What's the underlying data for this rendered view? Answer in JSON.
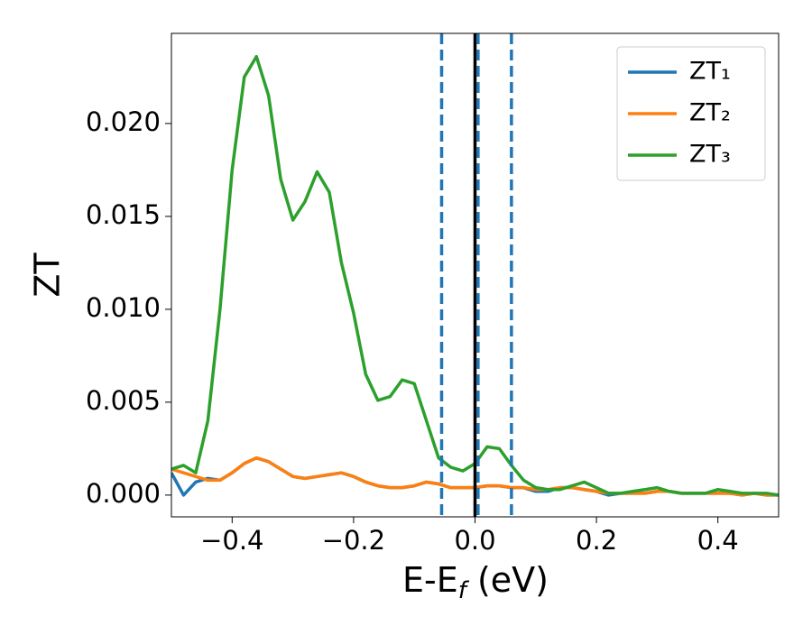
{
  "chart_data": {
    "type": "line",
    "ylabel": "ZT",
    "xlabel": [
      "E-E",
      "f",
      " (eV)"
    ],
    "xlim": [
      -0.5,
      0.5
    ],
    "ylim": [
      -0.00117,
      0.02485
    ],
    "xticks": [
      {
        "value": -0.4,
        "label": "−0.4"
      },
      {
        "value": -0.2,
        "label": "−0.2"
      },
      {
        "value": 0,
        "label": "0.0"
      },
      0.2,
      0.4
    ],
    "yticks": [
      {
        "value": 0,
        "label": "0.000"
      },
      {
        "value": 0.005,
        "label": "0.005"
      },
      {
        "value": 0.01,
        "label": "0.010"
      },
      {
        "value": 0.015,
        "label": "0.015"
      },
      {
        "value": 0.02,
        "label": "0.020"
      }
    ],
    "legend": "upper right",
    "grid": false,
    "vlines": [
      {
        "x": 0,
        "color": "#000000",
        "style": "solid"
      },
      {
        "x": -0.055,
        "color": "#1f77b4",
        "style": "dashed"
      },
      {
        "x": 0.005,
        "color": "#1f77b4",
        "style": "dashed"
      },
      {
        "x": 0.06,
        "color": "#1f77b4",
        "style": "dashed"
      }
    ],
    "x": [
      -0.5,
      -0.48,
      -0.46,
      -0.44,
      -0.42,
      -0.4,
      -0.38,
      -0.36,
      -0.34,
      -0.32,
      -0.3,
      -0.28,
      -0.26,
      -0.24,
      -0.22,
      -0.2,
      -0.18,
      -0.16,
      -0.14,
      -0.12,
      -0.1,
      -0.08,
      -0.06,
      -0.04,
      -0.02,
      0,
      0.02,
      0.04,
      0.06,
      0.08,
      0.1,
      0.12,
      0.14,
      0.16,
      0.18,
      0.2,
      0.22,
      0.24,
      0.26,
      0.28,
      0.3,
      0.32,
      0.34,
      0.36,
      0.38,
      0.4,
      0.42,
      0.44,
      0.46,
      0.48,
      0.5
    ],
    "series": [
      {
        "name": "ZT₁",
        "color": "#1f77b4",
        "values": [
          0.0012,
          0.0,
          0.0007,
          0.0009,
          0.0008,
          0.0012,
          0.0017,
          0.002,
          0.0018,
          0.0014,
          0.001,
          0.0009,
          0.001,
          0.0011,
          0.0012,
          0.001,
          0.0007,
          0.0005,
          0.0004,
          0.0004,
          0.0005,
          0.0007,
          0.0006,
          0.0004,
          0.0004,
          0.0004,
          0.0005,
          0.0005,
          0.0004,
          0.0004,
          0.0002,
          0.0002,
          0.0004,
          0.0004,
          0.0003,
          0.0002,
          0.0,
          0.0001,
          0.0001,
          0.0001,
          0.0002,
          0.0002,
          0.0001,
          0.0001,
          0.0001,
          0.0001,
          0.0001,
          0.0,
          0.0001,
          0.0,
          0.0
        ]
      },
      {
        "name": "ZT₂",
        "color": "#ff7f0e",
        "values": [
          0.0014,
          0.0012,
          0.001,
          0.0008,
          0.0008,
          0.0012,
          0.0017,
          0.002,
          0.0018,
          0.0014,
          0.001,
          0.0009,
          0.001,
          0.0011,
          0.0012,
          0.001,
          0.0007,
          0.0005,
          0.0004,
          0.0004,
          0.0005,
          0.0007,
          0.0006,
          0.0004,
          0.0004,
          0.0004,
          0.0005,
          0.0005,
          0.0004,
          0.0004,
          0.0003,
          0.0003,
          0.0004,
          0.0004,
          0.0003,
          0.0002,
          0.0001,
          0.0001,
          0.0001,
          0.0001,
          0.0002,
          0.0002,
          0.0001,
          0.0001,
          0.0001,
          0.0001,
          0.0001,
          0.0,
          0.0001,
          0.0,
          0.0
        ]
      },
      {
        "name": "ZT₃",
        "color": "#2ca02c",
        "values": [
          0.0014,
          0.0016,
          0.0012,
          0.004,
          0.01,
          0.0175,
          0.0225,
          0.0236,
          0.0215,
          0.017,
          0.0148,
          0.0158,
          0.0174,
          0.0163,
          0.0125,
          0.0098,
          0.0065,
          0.0051,
          0.0053,
          0.0062,
          0.006,
          0.004,
          0.002,
          0.0015,
          0.0013,
          0.0017,
          0.0026,
          0.0025,
          0.0016,
          0.0008,
          0.0004,
          0.0003,
          0.0003,
          0.0005,
          0.0007,
          0.0004,
          0.0001,
          0.0001,
          0.0002,
          0.0003,
          0.0004,
          0.0002,
          0.0001,
          0.0001,
          0.0001,
          0.0003,
          0.0002,
          0.0001,
          0.0001,
          0.0001,
          0.0
        ]
      }
    ]
  }
}
